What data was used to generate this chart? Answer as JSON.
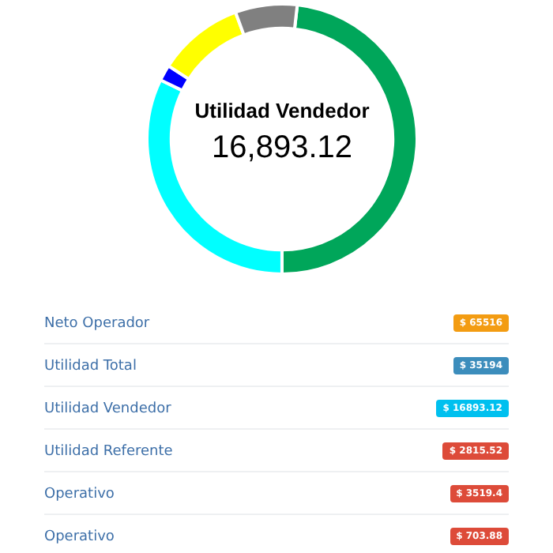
{
  "chart_data": [
    {
      "type": "donut",
      "annotations": [
        "Utilidad Vendedor",
        "16,893.12"
      ],
      "categories": [
        null,
        null,
        null,
        null,
        null
      ],
      "values": [
        48.2,
        32.2,
        1.9,
        10.3,
        7.4
      ],
      "colors": [
        "#00a65a",
        "#00ffff",
        "#0000ff",
        "#ffff00",
        "#808080"
      ],
      "legend": false
    },
    {
      "type": "other",
      "categories": [
        "Neto Operador",
        "Utilidad Total",
        "Utilidad Vendedor",
        "Utilidad Referente",
        "Operativo",
        "Operativo"
      ],
      "value_labels": [
        "$ 65516",
        "$ 35194",
        "$ 16893.12",
        "$ 2815.52",
        "$ 3519.4",
        "$ 703.88"
      ],
      "colors": [
        "#f39c12",
        "#3c8dbc",
        "#00c0ef",
        "#dd4b39",
        "#dd4b39",
        "#dd4b39"
      ]
    }
  ]
}
